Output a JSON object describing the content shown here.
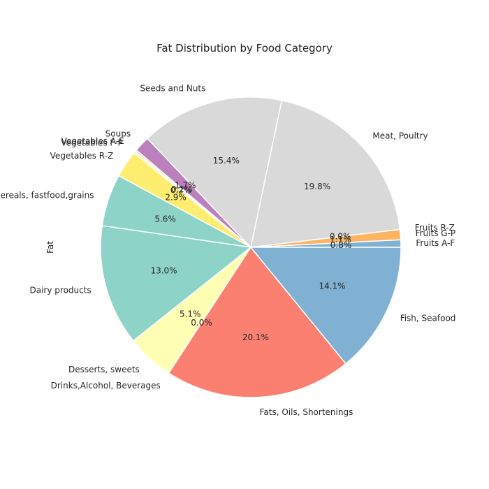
{
  "chart_data": {
    "type": "pie",
    "title": "Fat Distribution by Food Category",
    "ylabel": "Fat",
    "start_angle_deg": 0,
    "direction": "counterclockwise",
    "slices": [
      {
        "label": "Fruits A-F",
        "percent": 0.8,
        "pct_label": "0.8%",
        "color": "#80b1d3"
      },
      {
        "label": "Fruits G-P",
        "percent": 1.1,
        "pct_label": "1.1%",
        "color": "#fdb462"
      },
      {
        "label": "Fruits R-Z",
        "percent": 0.0,
        "pct_label": "0.0%",
        "color": "#b3de69"
      },
      {
        "label": "Meat, Poultry",
        "percent": 19.8,
        "pct_label": "19.8%",
        "color": "#d9d9d9"
      },
      {
        "label": "Seeds and Nuts",
        "percent": 15.4,
        "pct_label": "15.4%",
        "color": "#d9d9d9"
      },
      {
        "label": "Soups",
        "percent": 1.7,
        "pct_label": "1.7%",
        "color": "#bc80bd"
      },
      {
        "label": "Vegetables A-E",
        "percent": 0.2,
        "pct_label": "0.2%",
        "color": "#ccebc5"
      },
      {
        "label": "Vegetables F-P",
        "percent": 0.2,
        "pct_label": "0.2%",
        "color": "#ffed6f"
      },
      {
        "label": "Vegetables R-Z",
        "percent": 2.9,
        "pct_label": "2.9%",
        "color": "#ffed6f"
      },
      {
        "label": "Breads, cereals, fastfood,grains",
        "percent": 5.6,
        "pct_label": "5.6%",
        "color": "#8dd3c7"
      },
      {
        "label": "Dairy products",
        "percent": 13.0,
        "pct_label": "13.0%",
        "color": "#8dd3c7"
      },
      {
        "label": "Desserts, sweets",
        "percent": 5.1,
        "pct_label": "5.1%",
        "color": "#ffffb3"
      },
      {
        "label": "Drinks,Alcohol, Beverages",
        "percent": 0.0,
        "pct_label": "0.0%",
        "color": "#bebada"
      },
      {
        "label": "Fats, Oils, Shortenings",
        "percent": 20.1,
        "pct_label": "20.1%",
        "color": "#fb8072"
      },
      {
        "label": "Fish, Seafood",
        "percent": 14.1,
        "pct_label": "14.1%",
        "color": "#80b1d3"
      }
    ]
  }
}
